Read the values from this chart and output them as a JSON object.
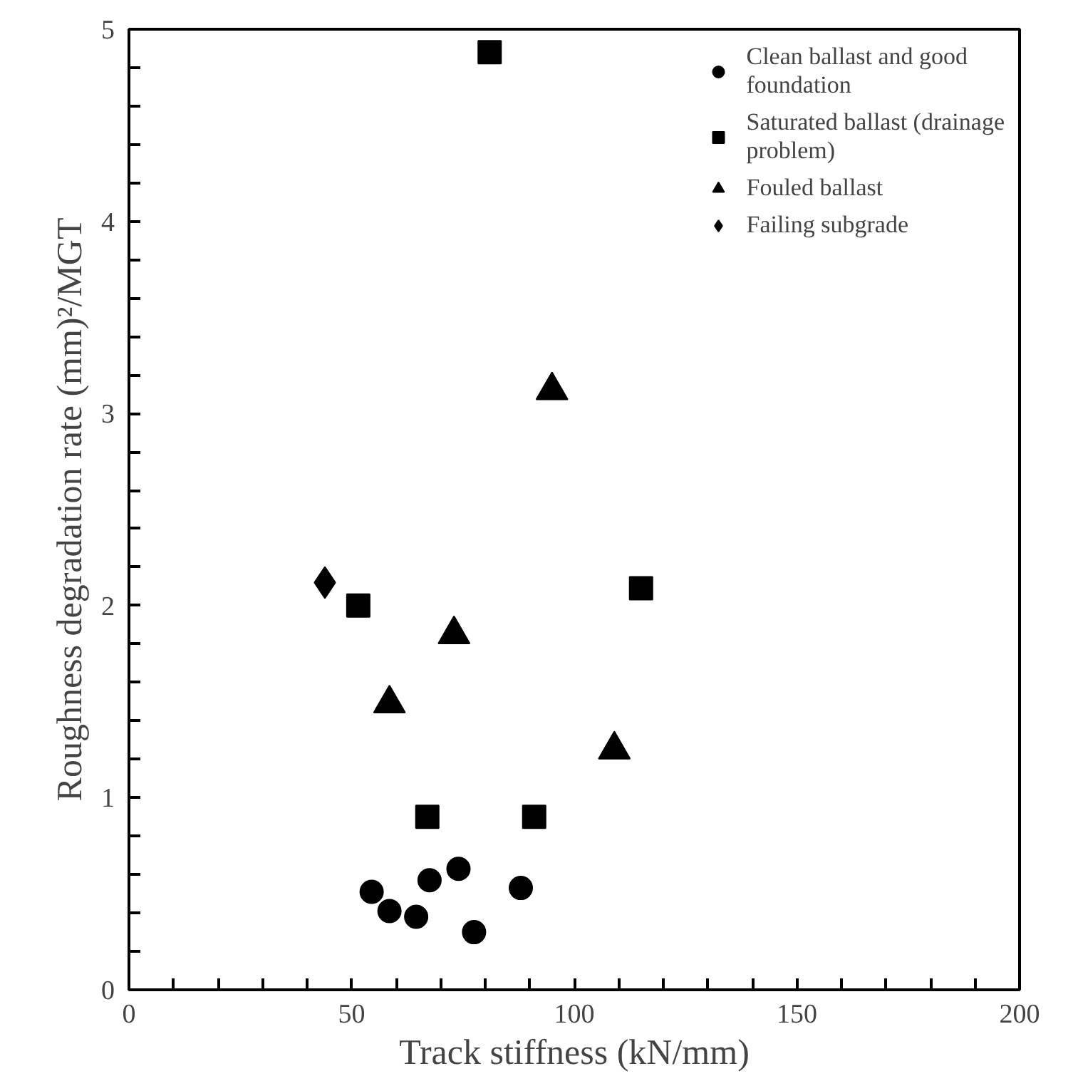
{
  "chart_data": {
    "type": "scatter",
    "xlabel": "Track stiffness (kN/mm)",
    "ylabel": "Roughness degradation rate (mm)²/MGT",
    "xlim": [
      0,
      200
    ],
    "ylim": [
      0,
      5
    ],
    "xticks": [
      0,
      {
        "value": 10,
        "label": null
      },
      {
        "value": 20,
        "label": null
      },
      {
        "value": 30,
        "label": null
      },
      {
        "value": 40,
        "label": null
      },
      50,
      {
        "value": 60,
        "label": null
      },
      {
        "value": 70,
        "label": null
      },
      {
        "value": 80,
        "label": null
      },
      {
        "value": 90,
        "label": null
      },
      100,
      {
        "value": 110,
        "label": null
      },
      {
        "value": 120,
        "label": null
      },
      {
        "value": 130,
        "label": null
      },
      {
        "value": 140,
        "label": null
      },
      150,
      {
        "value": 160,
        "label": null
      },
      {
        "value": 170,
        "label": null
      },
      {
        "value": 180,
        "label": null
      },
      {
        "value": 190,
        "label": null
      },
      200
    ],
    "yticks": [
      0,
      {
        "value": 0.2,
        "label": null
      },
      {
        "value": 0.4,
        "label": null
      },
      {
        "value": 0.6,
        "label": null
      },
      {
        "value": 0.8,
        "label": null
      },
      1,
      {
        "value": 1.2,
        "label": null
      },
      {
        "value": 1.4,
        "label": null
      },
      {
        "value": 1.6,
        "label": null
      },
      {
        "value": 1.8,
        "label": null
      },
      2,
      {
        "value": 2.2,
        "label": null
      },
      {
        "value": 2.4,
        "label": null
      },
      {
        "value": 2.6,
        "label": null
      },
      {
        "value": 2.8,
        "label": null
      },
      3,
      {
        "value": 3.2,
        "label": null
      },
      {
        "value": 3.4,
        "label": null
      },
      {
        "value": 3.6,
        "label": null
      },
      {
        "value": 3.8,
        "label": null
      },
      4,
      {
        "value": 4.2,
        "label": null
      },
      {
        "value": 4.4,
        "label": null
      },
      {
        "value": 4.6,
        "label": null
      },
      {
        "value": 4.8,
        "label": null
      },
      5
    ],
    "grid": false,
    "legend": "top right",
    "series": [
      {
        "name": "Clean ballast and good foundation",
        "color": "#000000",
        "marker": "circle",
        "x": [
          54.5,
          58.5,
          64.5,
          67.5,
          74,
          77.5,
          88
        ],
        "values": [
          0.51,
          0.41,
          0.38,
          0.57,
          0.63,
          0.3,
          0.53
        ]
      },
      {
        "name": "Saturated ballast (drainage problem)",
        "color": "#000000",
        "marker": "square",
        "x": [
          81,
          51.5,
          115,
          67,
          91
        ],
        "values": [
          4.88,
          2.0,
          2.09,
          0.9,
          0.9
        ]
      },
      {
        "name": "Fouled ballast",
        "color": "#000000",
        "marker": "triangle",
        "x": [
          95,
          73,
          58.5,
          109
        ],
        "values": [
          3.12,
          1.85,
          1.49,
          1.25
        ]
      },
      {
        "name": "Failing subgrade",
        "color": "#000000",
        "marker": "diamond",
        "x": [
          44
        ],
        "values": [
          2.12
        ]
      }
    ]
  }
}
